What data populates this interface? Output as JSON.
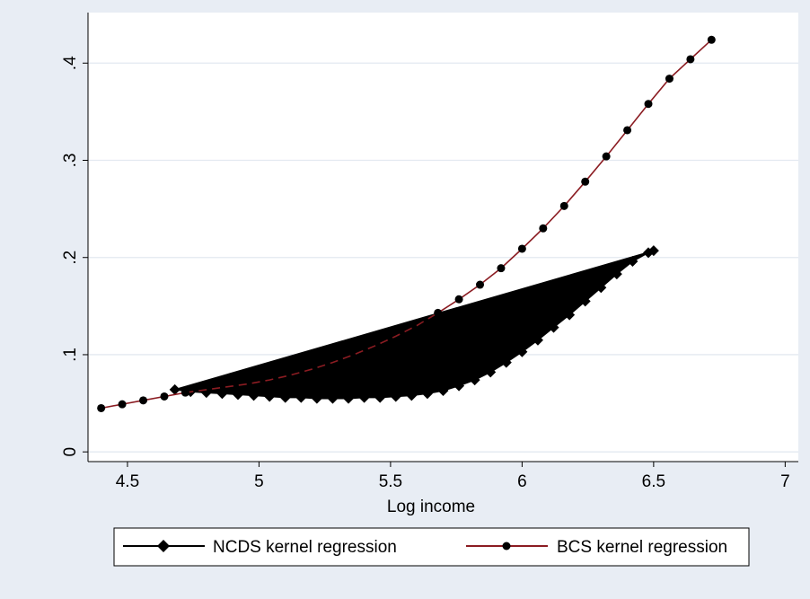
{
  "chart_data": {
    "type": "line",
    "xlabel": "Log income",
    "ylabel": "",
    "xlim": [
      4.4,
      7.0
    ],
    "ylim": [
      0,
      0.42
    ],
    "x_ticks": [
      4.5,
      5,
      5.5,
      6,
      6.5,
      7
    ],
    "x_tick_labels": [
      "4.5",
      "5",
      "5.5",
      "6",
      "6.5",
      "7"
    ],
    "y_ticks": [
      0,
      0.1,
      0.2,
      0.3,
      0.4
    ],
    "y_tick_labels": [
      "0",
      ".1",
      ".2",
      ".3",
      ".4"
    ],
    "grid": true,
    "legend_position": "bottom",
    "series": [
      {
        "name": "NCDS kernel regression",
        "color": "#000000",
        "marker": "diamond",
        "x": [
          4.68,
          4.74,
          4.8,
          4.86,
          4.92,
          4.98,
          5.04,
          5.1,
          5.16,
          5.22,
          5.28,
          5.34,
          5.4,
          5.46,
          5.52,
          5.58,
          5.64,
          5.7,
          5.76,
          5.82,
          5.88,
          5.94,
          6.0,
          6.06,
          6.12,
          6.18,
          6.24,
          6.3,
          6.36,
          6.42,
          6.48,
          6.5
        ],
        "y": [
          0.064,
          0.062,
          0.061,
          0.06,
          0.059,
          0.058,
          0.057,
          0.056,
          0.056,
          0.055,
          0.055,
          0.055,
          0.056,
          0.056,
          0.057,
          0.058,
          0.06,
          0.063,
          0.068,
          0.074,
          0.082,
          0.092,
          0.103,
          0.115,
          0.128,
          0.141,
          0.155,
          0.169,
          0.183,
          0.196,
          0.205,
          0.207
        ]
      },
      {
        "name": "BCS kernel regression",
        "color": "#8b1c22",
        "marker": "circle",
        "x": [
          4.4,
          4.48,
          4.56,
          4.64,
          4.72,
          5.68,
          5.76,
          5.84,
          5.92,
          6.0,
          6.08,
          6.16,
          6.24,
          6.32,
          6.4,
          6.48,
          6.56,
          6.64,
          6.72
        ],
        "y": [
          0.045,
          0.049,
          0.053,
          0.057,
          0.061,
          0.143,
          0.157,
          0.172,
          0.189,
          0.209,
          0.23,
          0.253,
          0.278,
          0.304,
          0.331,
          0.358,
          0.384,
          0.404,
          0.424
        ]
      }
    ],
    "hidden_segment": {
      "x": [
        4.72,
        4.8,
        4.88,
        4.96,
        5.04,
        5.12,
        5.2,
        5.28,
        5.36,
        5.44,
        5.52,
        5.6,
        5.68
      ],
      "y": [
        0.061,
        0.064,
        0.067,
        0.07,
        0.074,
        0.079,
        0.085,
        0.092,
        0.1,
        0.109,
        0.119,
        0.13,
        0.143
      ]
    }
  }
}
